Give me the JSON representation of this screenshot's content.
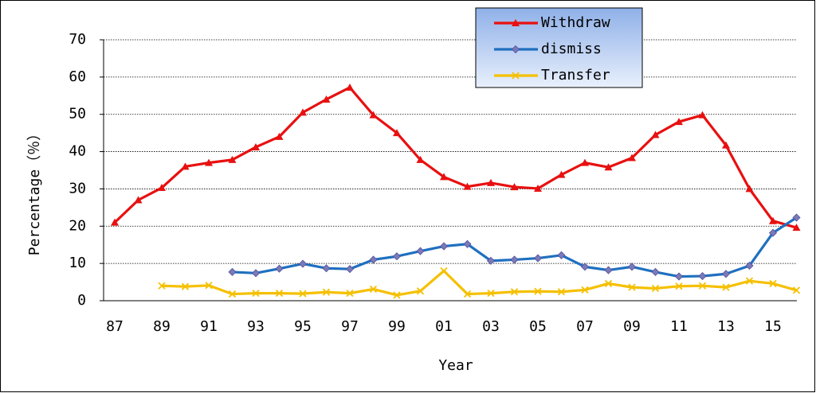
{
  "chart_data": {
    "type": "line",
    "xlabel": "Year",
    "ylabel": "Percentage（％）",
    "categories": [
      "87",
      null,
      "89",
      null,
      "91",
      null,
      "93",
      null,
      "95",
      null,
      "97",
      null,
      "99",
      null,
      "01",
      null,
      "03",
      null,
      "05",
      null,
      "07",
      null,
      "09",
      null,
      "11",
      null,
      "13",
      null,
      "15",
      null
    ],
    "series": [
      {
        "name": "Withdraw",
        "color": "#e81010",
        "marker": "triangle",
        "values": [
          21,
          27,
          30.3,
          36,
          37,
          37.8,
          41.2,
          44,
          50.5,
          54,
          57.2,
          49.8,
          45,
          37.8,
          33.2,
          30.6,
          31.6,
          30.5,
          30.1,
          33.8,
          37,
          35.8,
          38.3,
          44.5,
          48,
          49.8,
          41.7,
          30,
          21.4,
          19.6
        ]
      },
      {
        "name": "dismiss",
        "color": "#1f70c0",
        "marker": "diamond",
        "values": [
          null,
          null,
          null,
          null,
          null,
          7.7,
          7.4,
          8.6,
          9.9,
          8.7,
          8.5,
          11,
          11.9,
          13.3,
          14.6,
          15.2,
          10.7,
          11,
          11.4,
          12.2,
          9.1,
          8.2,
          9.1,
          7.7,
          6.5,
          6.6,
          7.2,
          9.4,
          18.2,
          22.3
        ]
      },
      {
        "name": "Transfer",
        "color": "#f5c000",
        "marker": "x",
        "values": [
          null,
          null,
          4,
          3.8,
          4.1,
          1.8,
          2,
          2,
          1.9,
          2.3,
          2,
          3.1,
          1.5,
          2.6,
          8,
          1.8,
          2,
          2.4,
          2.5,
          2.4,
          2.9,
          4.6,
          3.6,
          3.3,
          3.9,
          4,
          3.6,
          5.3,
          4.6,
          2.8
        ]
      }
    ],
    "ylim": [
      0,
      70
    ],
    "yticks": [
      0,
      10,
      20,
      30,
      40,
      50,
      60,
      70
    ],
    "grid": true,
    "legend": "top-right"
  }
}
